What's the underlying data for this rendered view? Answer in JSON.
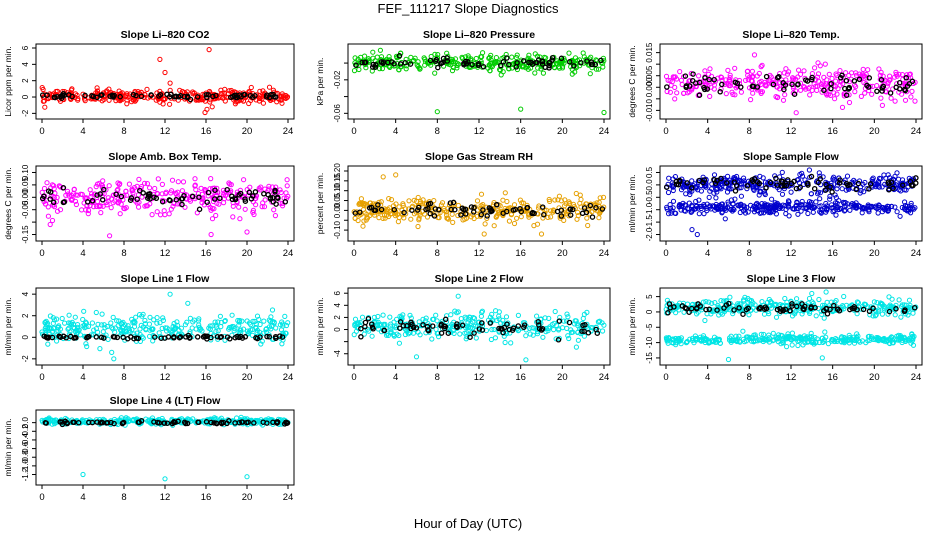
{
  "page": {
    "title": "FEF_111217  Slope Diagnostics",
    "xlabel": "Hour of Day (UTC)"
  },
  "chart_data": [
    {
      "type": "scatter",
      "title": "Slope Li–820 CO2",
      "ylabel": "Licor ppm per min.",
      "color": "#ff0000",
      "xlim": [
        0,
        24
      ],
      "ylim": [
        -2.2,
        6
      ],
      "yticks": [
        -2,
        0,
        2,
        4,
        6
      ],
      "yticklabels": [
        "-2",
        "0",
        "2",
        "4",
        "6"
      ],
      "xticks": [
        0,
        4,
        8,
        12,
        16,
        20,
        24
      ],
      "series": [
        {
          "name": "colored",
          "center": 0.1,
          "spread": 0.7
        },
        {
          "name": "black",
          "center": 0.1,
          "spread": 0.25
        }
      ],
      "outliers": [
        [
          11.5,
          4.6
        ],
        [
          12,
          3.0
        ],
        [
          12.5,
          1.7
        ],
        [
          16.3,
          5.8
        ],
        [
          16.1,
          -1.5
        ],
        [
          16.6,
          -1.2
        ],
        [
          15.9,
          -1.9
        ]
      ]
    },
    {
      "type": "scatter",
      "title": "Slope Li–820 Pressure",
      "ylabel": "kPa per min.",
      "color": "#00cc00",
      "xlim": [
        0,
        24
      ],
      "ylim": [
        -0.062,
        0.018
      ],
      "yticks": [
        -0.06,
        -0.04,
        -0.02,
        0.0
      ],
      "yticklabels": [
        "-0.06",
        "",
        "-0.02",
        ""
      ],
      "xticks": [
        0,
        4,
        8,
        12,
        16,
        20,
        24
      ],
      "series": [
        {
          "name": "colored",
          "center": 0.0,
          "spread": 0.009
        },
        {
          "name": "black",
          "center": 0.0,
          "spread": 0.005
        }
      ],
      "outliers": [
        [
          8,
          -0.058
        ],
        [
          16,
          -0.055
        ],
        [
          24,
          -0.059
        ],
        [
          1.8,
          0.013
        ],
        [
          22,
          0.012
        ]
      ]
    },
    {
      "type": "scatter",
      "title": "Slope Li–820 Temp.",
      "ylabel": "degrees C per min.",
      "color": "#ff00ff",
      "xlim": [
        0,
        24
      ],
      "ylim": [
        -0.012,
        0.017
      ],
      "yticks": [
        -0.01,
        -0.005,
        0.0,
        0.005,
        0.01,
        0.015
      ],
      "yticklabels": [
        "-0.010",
        "",
        "0.000",
        "0.005",
        "",
        "0.015"
      ],
      "xticks": [
        0,
        4,
        8,
        12,
        16,
        20,
        24
      ],
      "series": [
        {
          "name": "colored",
          "center": 0.0015,
          "spread": 0.0065
        },
        {
          "name": "black",
          "center": 0.001,
          "spread": 0.004
        }
      ],
      "outliers": [
        [
          12.5,
          -0.011
        ],
        [
          8.5,
          0.014
        ]
      ]
    },
    {
      "type": "scatter",
      "title": "Slope Amb. Box Temp.",
      "ylabel": "degrees C per min.",
      "color": "#ff00ff",
      "xlim": [
        0,
        24
      ],
      "ylim": [
        -0.16,
        0.11
      ],
      "yticks": [
        -0.15,
        -0.1,
        -0.05,
        0.0,
        0.05,
        0.1
      ],
      "yticklabels": [
        "-0.15",
        "",
        "-0.05",
        "0.00",
        "0.05",
        "0.10"
      ],
      "xticks": [
        0,
        4,
        8,
        12,
        16,
        20,
        24
      ],
      "series": [
        {
          "name": "colored",
          "center": 0.0,
          "spread": 0.06
        },
        {
          "name": "black",
          "center": 0.0,
          "spread": 0.03
        }
      ],
      "outliers": [
        [
          6.6,
          -0.155
        ],
        [
          16.5,
          -0.15
        ],
        [
          20,
          -0.14
        ]
      ]
    },
    {
      "type": "scatter",
      "title": "Slope Gas Stream RH",
      "ylabel": "percent per min.",
      "color": "#e6a000",
      "xlim": [
        0,
        24
      ],
      "ylim": [
        -0.135,
        0.205
      ],
      "yticks": [
        -0.1,
        -0.05,
        0.0,
        0.05,
        0.1,
        0.15,
        0.2
      ],
      "yticklabels": [
        "-0.10",
        "",
        "0.00",
        "0.05",
        "0.10",
        "0.15",
        "0.20"
      ],
      "xticks": [
        0,
        4,
        8,
        12,
        16,
        20,
        24
      ],
      "series": [
        {
          "name": "colored",
          "center": 0.0,
          "spread": 0.06
        },
        {
          "name": "black",
          "center": 0.0,
          "spread": 0.035
        }
      ],
      "outliers": [
        [
          4,
          0.18
        ],
        [
          2.8,
          0.17
        ],
        [
          18,
          -0.12
        ],
        [
          12.5,
          -0.12
        ]
      ]
    },
    {
      "type": "scatter",
      "title": "Slope Sample Flow",
      "ylabel": "ml/min per min.",
      "color": "#0000cc",
      "xlim": [
        0,
        24
      ],
      "ylim": [
        -2.1,
        0.6
      ],
      "yticks": [
        -2.0,
        -1.5,
        -1.0,
        -0.5,
        0.0,
        0.5
      ],
      "yticklabels": [
        "-2.0",
        "-1.5",
        "-1.0",
        "-0.5",
        "0.0",
        "0.5"
      ],
      "xticks": [
        0,
        4,
        8,
        12,
        16,
        20,
        24
      ],
      "series": [
        {
          "name": "colored",
          "center": 0.0,
          "spread": 0.35
        },
        {
          "name": "colored-lower",
          "center": -0.9,
          "spread": 0.25
        },
        {
          "name": "black",
          "center": 0.05,
          "spread": 0.2
        }
      ],
      "outliers": [
        [
          3,
          -2.0
        ],
        [
          2.5,
          -1.8
        ]
      ]
    },
    {
      "type": "scatter",
      "title": "Slope Line 1 Flow",
      "ylabel": "ml/min per min.",
      "color": "#00e5e5",
      "xlim": [
        0,
        24
      ],
      "ylim": [
        -2.2,
        4.2
      ],
      "yticks": [
        -2,
        0,
        2,
        4
      ],
      "yticklabels": [
        "-2",
        "0",
        "2",
        "4"
      ],
      "xticks": [
        0,
        4,
        8,
        12,
        16,
        20,
        24
      ],
      "series": [
        {
          "name": "colored",
          "center": 0.8,
          "spread": 1.2
        },
        {
          "name": "black",
          "center": 0.0,
          "spread": 0.12
        }
      ],
      "outliers": [
        [
          12.5,
          4.0
        ],
        [
          7,
          -2.0
        ],
        [
          6.8,
          -1.4
        ]
      ]
    },
    {
      "type": "scatter",
      "title": "Slope Line 2 Flow",
      "ylabel": "ml/min per min.",
      "color": "#00e5e5",
      "xlim": [
        0,
        24
      ],
      "ylim": [
        -5.2,
        6.2
      ],
      "yticks": [
        -4,
        -2,
        0,
        2,
        4,
        6
      ],
      "yticklabels": [
        "-4",
        "",
        "0",
        "2",
        "4",
        "6"
      ],
      "xticks": [
        0,
        4,
        8,
        12,
        16,
        20,
        24
      ],
      "series": [
        {
          "name": "colored",
          "center": 0.5,
          "spread": 2.0
        },
        {
          "name": "black",
          "center": 0.3,
          "spread": 1.2
        }
      ],
      "outliers": [
        [
          16.5,
          -5.0
        ],
        [
          10,
          5.5
        ],
        [
          6,
          -4.5
        ]
      ]
    },
    {
      "type": "scatter",
      "title": "Slope Line 3 Flow",
      "ylabel": "ml/min per min.",
      "color": "#00e5e5",
      "xlim": [
        0,
        24
      ],
      "ylim": [
        -16,
        6.5
      ],
      "yticks": [
        -15,
        -10,
        -5,
        0,
        5
      ],
      "yticklabels": [
        "-15",
        "-10",
        "-5",
        "0",
        "5"
      ],
      "xticks": [
        0,
        4,
        8,
        12,
        16,
        20,
        24
      ],
      "series": [
        {
          "name": "colored",
          "center": 1.5,
          "spread": 2.5
        },
        {
          "name": "colored-lower",
          "center": -9,
          "spread": 1.5
        },
        {
          "name": "black",
          "center": 1.0,
          "spread": 1.5
        }
      ],
      "outliers": [
        [
          6,
          -15.5
        ],
        [
          15,
          -15
        ],
        [
          14,
          6
        ]
      ]
    },
    {
      "type": "scatter",
      "title": "Slope Line 4 (LT) Flow",
      "ylabel": "ml/min per min.",
      "color": "#00e5e5",
      "xlim": [
        0,
        24
      ],
      "ylim": [
        -1.35,
        0.2
      ],
      "yticks": [
        -1.2,
        -1.0,
        -0.8,
        -0.6,
        -0.4,
        -0.2,
        0.0
      ],
      "yticklabels": [
        "-1.2",
        "-1.0",
        "-0.8",
        "-0.6",
        "-0.4",
        "-0.2",
        "0.0"
      ],
      "xticks": [
        0,
        4,
        8,
        12,
        16,
        20,
        24
      ],
      "series": [
        {
          "name": "colored",
          "center": 0.03,
          "spread": 0.06
        },
        {
          "name": "black",
          "center": 0.0,
          "spread": 0.03
        }
      ],
      "outliers": [
        [
          4,
          -1.2
        ],
        [
          12,
          -1.3
        ],
        [
          20,
          -1.25
        ]
      ]
    }
  ]
}
